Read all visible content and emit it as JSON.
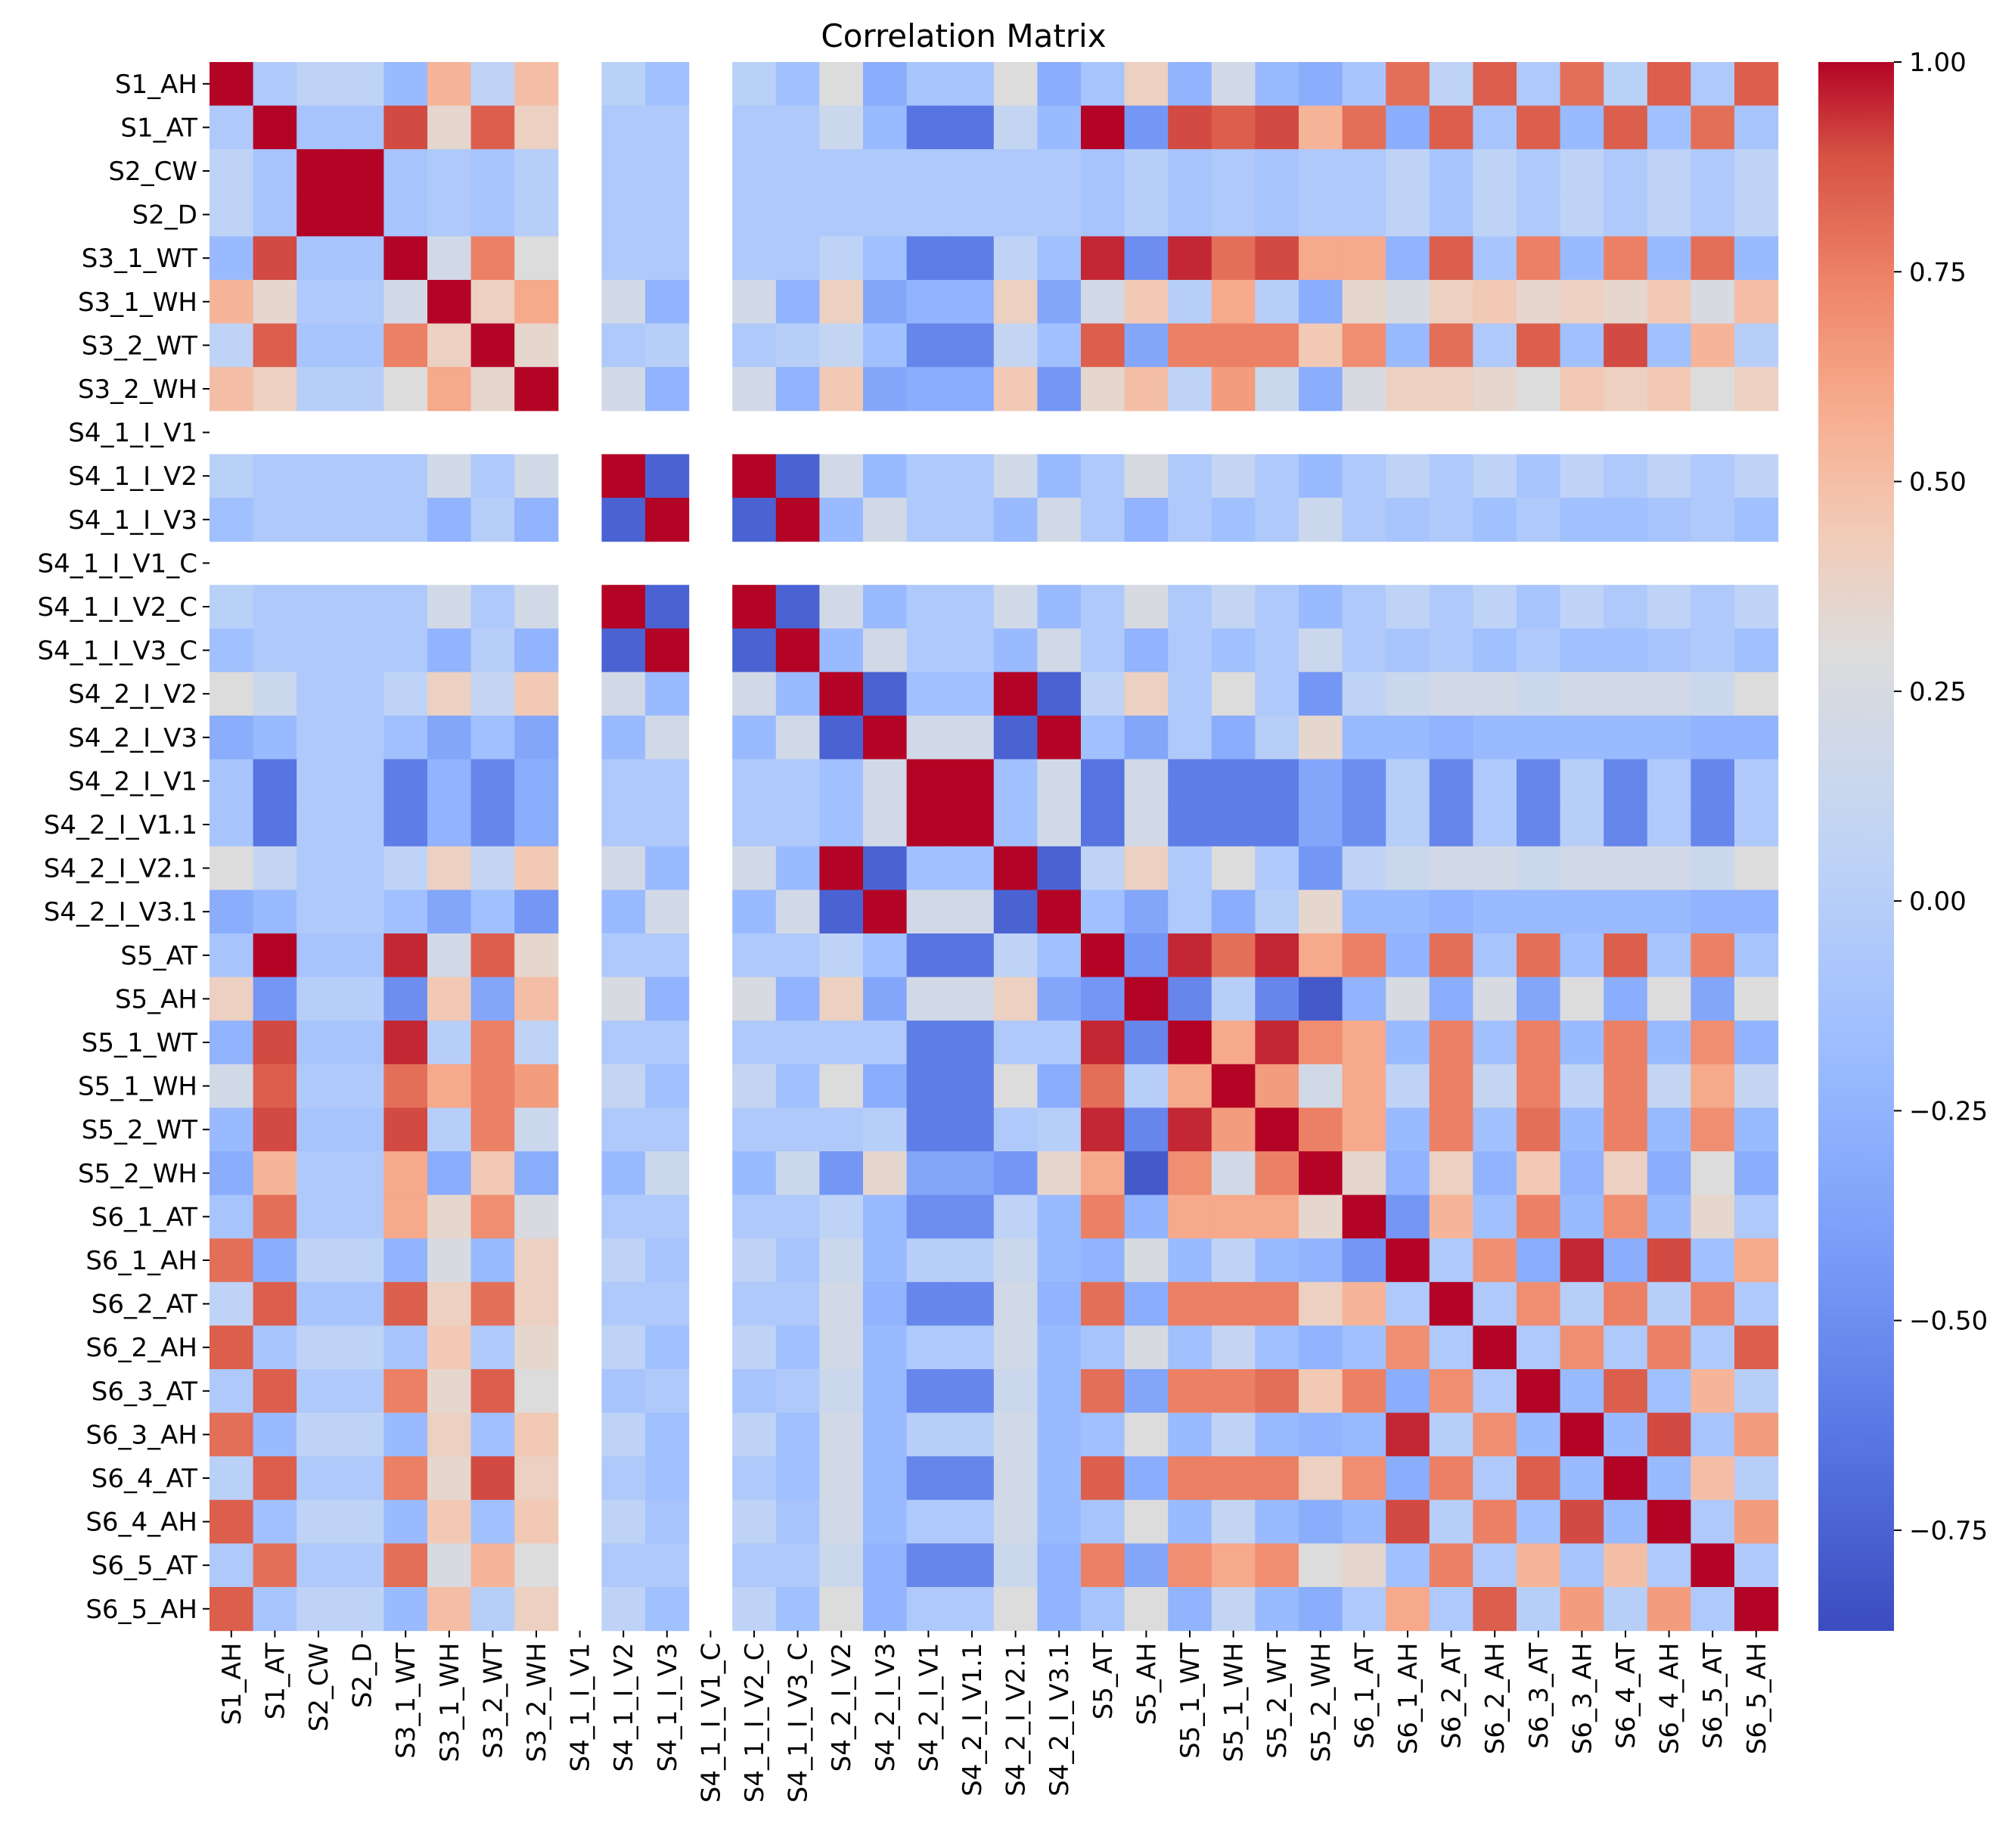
{
  "chart_data": {
    "type": "heatmap",
    "title": "Correlation Matrix",
    "colormap": "coolwarm",
    "vmin": -0.87,
    "vmax": 1.0,
    "colorbar_ticks": [
      1.0,
      0.75,
      0.5,
      0.25,
      0.0,
      -0.25,
      -0.5,
      -0.75
    ],
    "colorbar_tick_labels": [
      "1.00",
      "0.75",
      "0.50",
      "0.25",
      "0.00",
      "−0.25",
      "−0.50",
      "−0.75"
    ],
    "labels": [
      "S1_AH",
      "S1_AT",
      "S2_CW",
      "S2_D",
      "S3_1_WT",
      "S3_1_WH",
      "S3_2_WT",
      "S3_2_WH",
      "S4_1_I_V1",
      "S4_1_I_V2",
      "S4_1_I_V3",
      "S4_1_I_V1_C",
      "S4_1_I_V2_C",
      "S4_1_I_V3_C",
      "S4_2_I_V2",
      "S4_2_I_V3",
      "S4_2_I_V1",
      "S4_2_I_V1.1",
      "S4_2_I_V2.1",
      "S4_2_I_V3.1",
      "S5_AT",
      "S5_AH",
      "S5_1_WT",
      "S5_1_WH",
      "S5_2_WT",
      "S5_2_WH",
      "S6_1_AT",
      "S6_1_AH",
      "S6_2_AT",
      "S6_2_AH",
      "S6_3_AT",
      "S6_3_AH",
      "S6_4_AT",
      "S6_4_AH",
      "S6_5_AT",
      "S6_5_AH"
    ],
    "matrix": [
      [
        1,
        -0.05,
        0.05,
        0.05,
        -0.2,
        0.55,
        0.05,
        0.5,
        null,
        0.02,
        -0.15,
        null,
        0.02,
        -0.15,
        0.3,
        -0.3,
        -0.1,
        -0.1,
        0.3,
        -0.3,
        -0.1,
        0.4,
        -0.25,
        0.2,
        -0.2,
        -0.3,
        -0.1,
        0.8,
        0.05,
        0.85,
        -0.05,
        0.8,
        0.02,
        0.85,
        -0.05,
        0.85
      ],
      [
        -0.05,
        1,
        -0.1,
        -0.1,
        0.9,
        0.35,
        0.85,
        0.4,
        null,
        -0.05,
        -0.05,
        null,
        -0.05,
        -0.05,
        0.15,
        -0.2,
        -0.65,
        -0.65,
        0.1,
        -0.2,
        1,
        -0.45,
        0.9,
        0.85,
        0.9,
        0.55,
        0.8,
        -0.3,
        0.85,
        -0.1,
        0.85,
        -0.2,
        0.85,
        -0.15,
        0.8,
        -0.1
      ],
      [
        0.05,
        -0.1,
        1,
        1,
        -0.1,
        -0.05,
        -0.1,
        0,
        null,
        -0.05,
        -0.05,
        null,
        -0.05,
        -0.05,
        -0.05,
        -0.05,
        -0.05,
        -0.05,
        -0.05,
        -0.05,
        -0.1,
        0,
        -0.1,
        -0.05,
        -0.1,
        -0.05,
        -0.05,
        0.05,
        -0.1,
        0.05,
        -0.05,
        0.05,
        -0.05,
        0.05,
        -0.05,
        0.05
      ],
      [
        0.05,
        -0.1,
        1,
        1,
        -0.1,
        -0.05,
        -0.1,
        0,
        null,
        -0.05,
        -0.05,
        null,
        -0.05,
        -0.05,
        -0.05,
        -0.05,
        -0.05,
        -0.05,
        -0.05,
        -0.05,
        -0.1,
        0,
        -0.1,
        -0.05,
        -0.1,
        -0.05,
        -0.05,
        0.05,
        -0.1,
        0.05,
        -0.05,
        0.05,
        -0.05,
        0.05,
        -0.05,
        0.05
      ],
      [
        -0.2,
        0.9,
        -0.1,
        -0.1,
        1,
        0.2,
        0.75,
        0.3,
        null,
        -0.05,
        -0.05,
        null,
        -0.05,
        -0.05,
        0.05,
        -0.15,
        -0.6,
        -0.6,
        0.05,
        -0.15,
        0.95,
        -0.5,
        0.95,
        0.8,
        0.9,
        0.6,
        0.6,
        -0.25,
        0.85,
        -0.1,
        0.75,
        -0.2,
        0.75,
        -0.2,
        0.8,
        -0.2
      ],
      [
        0.55,
        0.35,
        -0.05,
        -0.05,
        0.2,
        1,
        0.4,
        0.6,
        null,
        0.2,
        -0.25,
        null,
        0.2,
        -0.25,
        0.4,
        -0.35,
        -0.25,
        -0.25,
        0.4,
        -0.35,
        0.2,
        0.45,
        0,
        0.6,
        0,
        -0.3,
        0.35,
        0.25,
        0.4,
        0.45,
        0.35,
        0.4,
        0.35,
        0.45,
        0.25,
        0.5
      ],
      [
        0.05,
        0.85,
        -0.1,
        -0.1,
        0.75,
        0.4,
        1,
        0.35,
        null,
        -0.05,
        0,
        null,
        -0.05,
        0,
        0.1,
        -0.15,
        -0.55,
        -0.55,
        0.1,
        -0.15,
        0.85,
        -0.35,
        0.75,
        0.75,
        0.75,
        0.45,
        0.7,
        -0.2,
        0.8,
        -0.05,
        0.85,
        -0.15,
        0.9,
        -0.15,
        0.55,
        0
      ],
      [
        0.5,
        0.4,
        0,
        0,
        0.3,
        0.6,
        0.35,
        1,
        null,
        0.2,
        -0.25,
        null,
        0.2,
        -0.25,
        0.45,
        -0.35,
        -0.3,
        -0.3,
        0.45,
        -0.45,
        0.35,
        0.5,
        0.05,
        0.65,
        0.15,
        -0.3,
        0.25,
        0.4,
        0.4,
        0.35,
        0.3,
        0.45,
        0.4,
        0.45,
        0.3,
        0.4
      ],
      [
        null,
        null,
        null,
        null,
        null,
        null,
        null,
        null,
        null,
        null,
        null,
        null,
        null,
        null,
        null,
        null,
        null,
        null,
        null,
        null,
        null,
        null,
        null,
        null,
        null,
        null,
        null,
        null,
        null,
        null,
        null,
        null,
        null,
        null,
        null,
        null
      ],
      [
        0.02,
        -0.05,
        -0.05,
        -0.05,
        -0.05,
        0.2,
        -0.05,
        0.2,
        null,
        1,
        -0.75,
        null,
        1,
        -0.75,
        0.2,
        -0.2,
        -0.05,
        -0.05,
        0.2,
        -0.2,
        -0.05,
        0.25,
        -0.05,
        0.1,
        -0.05,
        -0.2,
        -0.05,
        0.05,
        -0.05,
        0.05,
        -0.1,
        0.05,
        -0.05,
        0.05,
        -0.05,
        0.05
      ],
      [
        -0.15,
        -0.05,
        -0.05,
        -0.05,
        -0.05,
        -0.25,
        0,
        -0.25,
        null,
        -0.75,
        1,
        null,
        -0.75,
        1,
        -0.2,
        0.2,
        -0.05,
        -0.05,
        -0.2,
        0.2,
        -0.05,
        -0.25,
        -0.05,
        -0.15,
        -0.05,
        0.15,
        -0.05,
        -0.1,
        -0.05,
        -0.15,
        -0.05,
        -0.15,
        -0.15,
        -0.1,
        -0.05,
        -0.15
      ],
      [
        null,
        null,
        null,
        null,
        null,
        null,
        null,
        null,
        null,
        null,
        null,
        null,
        null,
        null,
        null,
        null,
        null,
        null,
        null,
        null,
        null,
        null,
        null,
        null,
        null,
        null,
        null,
        null,
        null,
        null,
        null,
        null,
        null,
        null,
        null,
        null
      ],
      [
        0.02,
        -0.05,
        -0.05,
        -0.05,
        -0.05,
        0.2,
        -0.05,
        0.2,
        null,
        1,
        -0.75,
        null,
        1,
        -0.75,
        0.2,
        -0.2,
        -0.05,
        -0.05,
        0.2,
        -0.2,
        -0.05,
        0.25,
        -0.05,
        0.1,
        -0.05,
        -0.2,
        -0.05,
        0.05,
        -0.05,
        0.05,
        -0.1,
        0.05,
        -0.05,
        0.05,
        -0.05,
        0.05
      ],
      [
        -0.15,
        -0.05,
        -0.05,
        -0.05,
        -0.05,
        -0.25,
        0,
        -0.25,
        null,
        -0.75,
        1,
        null,
        -0.75,
        1,
        -0.2,
        0.2,
        -0.05,
        -0.05,
        -0.2,
        0.2,
        -0.05,
        -0.25,
        -0.05,
        -0.15,
        -0.05,
        0.15,
        -0.05,
        -0.1,
        -0.05,
        -0.15,
        -0.05,
        -0.15,
        -0.15,
        -0.1,
        -0.05,
        -0.15
      ],
      [
        0.3,
        0.15,
        -0.05,
        -0.05,
        0.05,
        0.4,
        0.1,
        0.45,
        null,
        0.2,
        -0.2,
        null,
        0.2,
        -0.2,
        1,
        -0.75,
        -0.15,
        -0.15,
        1,
        -0.75,
        0.05,
        0.4,
        -0.05,
        0.3,
        -0.05,
        -0.45,
        0.05,
        0.15,
        0.2,
        0.2,
        0.15,
        0.2,
        0.2,
        0.2,
        0.15,
        0.3
      ],
      [
        -0.3,
        -0.2,
        -0.05,
        -0.05,
        -0.15,
        -0.35,
        -0.15,
        -0.35,
        null,
        -0.2,
        0.2,
        null,
        -0.2,
        0.2,
        -0.75,
        1,
        0.2,
        0.2,
        -0.75,
        1,
        -0.15,
        -0.35,
        -0.05,
        -0.3,
        0,
        0.35,
        -0.2,
        -0.2,
        -0.25,
        -0.2,
        -0.2,
        -0.2,
        -0.2,
        -0.2,
        -0.25,
        -0.25
      ],
      [
        -0.1,
        -0.65,
        -0.05,
        -0.05,
        -0.6,
        -0.25,
        -0.55,
        -0.3,
        null,
        -0.05,
        -0.05,
        null,
        -0.05,
        -0.05,
        -0.15,
        0.2,
        1,
        1,
        -0.15,
        0.2,
        -0.65,
        0.2,
        -0.6,
        -0.6,
        -0.6,
        -0.35,
        -0.5,
        0,
        -0.55,
        -0.05,
        -0.55,
        0,
        -0.55,
        -0.05,
        -0.55,
        -0.05
      ],
      [
        -0.1,
        -0.65,
        -0.05,
        -0.05,
        -0.6,
        -0.25,
        -0.55,
        -0.3,
        null,
        -0.05,
        -0.05,
        null,
        -0.05,
        -0.05,
        -0.15,
        0.2,
        1,
        1,
        -0.15,
        0.2,
        -0.65,
        0.2,
        -0.6,
        -0.6,
        -0.6,
        -0.35,
        -0.5,
        0,
        -0.55,
        -0.05,
        -0.55,
        0,
        -0.55,
        -0.05,
        -0.55,
        -0.05
      ],
      [
        0.3,
        0.1,
        -0.05,
        -0.05,
        0.05,
        0.4,
        0.1,
        0.45,
        null,
        0.2,
        -0.2,
        null,
        0.2,
        -0.2,
        1,
        -0.75,
        -0.15,
        -0.15,
        1,
        -0.75,
        0.05,
        0.4,
        -0.05,
        0.3,
        -0.05,
        -0.45,
        0.05,
        0.15,
        0.2,
        0.2,
        0.15,
        0.2,
        0.2,
        0.2,
        0.15,
        0.3
      ],
      [
        -0.3,
        -0.2,
        -0.05,
        -0.05,
        -0.15,
        -0.35,
        -0.15,
        -0.45,
        null,
        -0.2,
        0.2,
        null,
        -0.2,
        0.2,
        -0.75,
        1,
        0.2,
        0.2,
        -0.75,
        1,
        -0.15,
        -0.35,
        -0.05,
        -0.3,
        0,
        0.35,
        -0.2,
        -0.2,
        -0.25,
        -0.2,
        -0.2,
        -0.2,
        -0.2,
        -0.2,
        -0.25,
        -0.25
      ],
      [
        -0.1,
        1,
        -0.1,
        -0.1,
        0.95,
        0.2,
        0.85,
        0.35,
        null,
        -0.05,
        -0.05,
        null,
        -0.05,
        -0.05,
        0.05,
        -0.15,
        -0.65,
        -0.65,
        0.05,
        -0.15,
        1,
        -0.45,
        0.95,
        0.8,
        0.95,
        0.6,
        0.75,
        -0.25,
        0.8,
        -0.1,
        0.8,
        -0.15,
        0.85,
        -0.1,
        0.75,
        -0.1
      ],
      [
        0.4,
        -0.45,
        0,
        0,
        -0.5,
        0.45,
        -0.35,
        0.5,
        null,
        0.25,
        -0.25,
        null,
        0.25,
        -0.25,
        0.4,
        -0.35,
        0.2,
        0.2,
        0.4,
        -0.35,
        -0.45,
        1,
        -0.55,
        0,
        -0.55,
        -0.8,
        -0.25,
        0.25,
        -0.3,
        0.25,
        -0.35,
        0.3,
        -0.3,
        0.3,
        -0.35,
        0.3
      ],
      [
        -0.25,
        0.9,
        -0.1,
        -0.1,
        0.95,
        0,
        0.75,
        0.05,
        null,
        -0.05,
        -0.05,
        null,
        -0.05,
        -0.05,
        -0.05,
        -0.05,
        -0.6,
        -0.6,
        -0.05,
        -0.05,
        0.95,
        -0.55,
        1,
        0.6,
        0.95,
        0.7,
        0.6,
        -0.2,
        0.75,
        -0.15,
        0.75,
        -0.2,
        0.75,
        -0.2,
        0.7,
        -0.25
      ],
      [
        0.2,
        0.85,
        -0.05,
        -0.05,
        0.8,
        0.6,
        0.75,
        0.65,
        null,
        0.1,
        -0.15,
        null,
        0.1,
        -0.15,
        0.3,
        -0.3,
        -0.6,
        -0.6,
        0.3,
        -0.3,
        0.8,
        0,
        0.6,
        1,
        0.65,
        0.2,
        0.6,
        0.05,
        0.75,
        0.1,
        0.75,
        0.05,
        0.75,
        0.1,
        0.6,
        0.1
      ],
      [
        -0.2,
        0.9,
        -0.1,
        -0.1,
        0.9,
        0,
        0.75,
        0.15,
        null,
        -0.05,
        -0.05,
        null,
        -0.05,
        -0.05,
        -0.05,
        0,
        -0.6,
        -0.6,
        -0.05,
        0,
        0.95,
        -0.55,
        0.95,
        0.65,
        1,
        0.75,
        0.6,
        -0.2,
        0.75,
        -0.15,
        0.8,
        -0.2,
        0.75,
        -0.2,
        0.7,
        -0.2
      ],
      [
        -0.3,
        0.55,
        -0.05,
        -0.05,
        0.6,
        -0.3,
        0.45,
        -0.3,
        null,
        -0.2,
        0.15,
        null,
        -0.2,
        0.15,
        -0.45,
        0.35,
        -0.35,
        -0.35,
        -0.45,
        0.35,
        0.6,
        -0.8,
        0.7,
        0.2,
        0.75,
        1,
        0.35,
        -0.25,
        0.4,
        -0.25,
        0.45,
        -0.25,
        0.4,
        -0.3,
        0.3,
        -0.3
      ],
      [
        -0.1,
        0.8,
        -0.05,
        -0.05,
        0.6,
        0.35,
        0.7,
        0.25,
        null,
        -0.05,
        -0.05,
        null,
        -0.05,
        -0.05,
        0.05,
        -0.2,
        -0.5,
        -0.5,
        0.05,
        -0.2,
        0.75,
        -0.25,
        0.6,
        0.6,
        0.6,
        0.35,
        1,
        -0.45,
        0.55,
        -0.15,
        0.75,
        -0.2,
        0.7,
        -0.2,
        0.35,
        -0.05
      ],
      [
        0.8,
        -0.3,
        0.05,
        0.05,
        -0.25,
        0.25,
        -0.2,
        0.4,
        null,
        0.05,
        -0.1,
        null,
        0.05,
        -0.1,
        0.15,
        -0.2,
        0,
        0,
        0.15,
        -0.2,
        -0.25,
        0.25,
        -0.2,
        0.05,
        -0.2,
        -0.25,
        -0.45,
        1,
        -0.05,
        0.7,
        -0.3,
        0.95,
        -0.3,
        0.9,
        -0.15,
        0.6
      ],
      [
        0.05,
        0.85,
        -0.1,
        -0.1,
        0.85,
        0.4,
        0.8,
        0.4,
        null,
        -0.05,
        -0.05,
        null,
        -0.05,
        -0.05,
        0.2,
        -0.25,
        -0.55,
        -0.55,
        0.2,
        -0.25,
        0.8,
        -0.3,
        0.75,
        0.75,
        0.75,
        0.4,
        0.55,
        -0.05,
        1,
        -0.05,
        0.7,
        0,
        0.75,
        0,
        0.75,
        -0.05
      ],
      [
        0.85,
        -0.1,
        0.05,
        0.05,
        -0.1,
        0.45,
        -0.05,
        0.35,
        null,
        0.05,
        -0.15,
        null,
        0.05,
        -0.15,
        0.2,
        -0.2,
        -0.05,
        -0.05,
        0.2,
        -0.2,
        -0.1,
        0.25,
        -0.15,
        0.1,
        -0.15,
        -0.25,
        -0.15,
        0.7,
        -0.05,
        1,
        -0.05,
        0.7,
        -0.05,
        0.75,
        -0.05,
        0.85
      ],
      [
        -0.05,
        0.85,
        -0.05,
        -0.05,
        0.75,
        0.35,
        0.85,
        0.3,
        null,
        -0.1,
        -0.05,
        null,
        -0.1,
        -0.05,
        0.15,
        -0.2,
        -0.55,
        -0.55,
        0.15,
        -0.2,
        0.8,
        -0.35,
        0.75,
        0.75,
        0.8,
        0.45,
        0.75,
        -0.3,
        0.7,
        -0.05,
        1,
        -0.2,
        0.85,
        -0.15,
        0.55,
        0
      ],
      [
        0.8,
        -0.2,
        0.05,
        0.05,
        -0.2,
        0.4,
        -0.15,
        0.45,
        null,
        0.05,
        -0.15,
        null,
        0.05,
        -0.15,
        0.2,
        -0.2,
        0,
        0,
        0.2,
        -0.2,
        -0.15,
        0.3,
        -0.2,
        0.05,
        -0.2,
        -0.25,
        -0.2,
        0.95,
        0,
        0.7,
        -0.2,
        1,
        -0.2,
        0.9,
        -0.1,
        0.65
      ],
      [
        0.02,
        0.85,
        -0.05,
        -0.05,
        0.75,
        0.35,
        0.9,
        0.4,
        null,
        -0.05,
        -0.15,
        null,
        -0.05,
        -0.15,
        0.2,
        -0.2,
        -0.55,
        -0.55,
        0.2,
        -0.2,
        0.85,
        -0.3,
        0.75,
        0.75,
        0.75,
        0.4,
        0.7,
        -0.3,
        0.75,
        -0.05,
        0.85,
        -0.2,
        1,
        -0.2,
        0.5,
        0
      ],
      [
        0.85,
        -0.15,
        0.05,
        0.05,
        -0.2,
        0.45,
        -0.15,
        0.45,
        null,
        0.05,
        -0.1,
        null,
        0.05,
        -0.1,
        0.2,
        -0.2,
        -0.05,
        -0.05,
        0.2,
        -0.2,
        -0.1,
        0.3,
        -0.2,
        0.1,
        -0.2,
        -0.3,
        -0.2,
        0.9,
        0,
        0.75,
        -0.15,
        0.9,
        -0.2,
        1,
        -0.05,
        0.65
      ],
      [
        -0.05,
        0.8,
        -0.05,
        -0.05,
        0.8,
        0.25,
        0.55,
        0.3,
        null,
        -0.05,
        -0.05,
        null,
        -0.05,
        -0.05,
        0.15,
        -0.25,
        -0.55,
        -0.55,
        0.15,
        -0.25,
        0.75,
        -0.35,
        0.7,
        0.6,
        0.7,
        0.3,
        0.35,
        -0.15,
        0.75,
        -0.05,
        0.55,
        -0.1,
        0.5,
        -0.05,
        1,
        -0.05
      ],
      [
        0.85,
        -0.1,
        0.05,
        0.05,
        -0.2,
        0.5,
        0,
        0.4,
        null,
        0.05,
        -0.15,
        null,
        0.05,
        -0.15,
        0.3,
        -0.25,
        -0.05,
        -0.05,
        0.3,
        -0.25,
        -0.1,
        0.3,
        -0.25,
        0.1,
        -0.2,
        -0.3,
        -0.05,
        0.6,
        -0.05,
        0.85,
        0,
        0.65,
        0,
        0.65,
        -0.05,
        1
      ]
    ]
  }
}
